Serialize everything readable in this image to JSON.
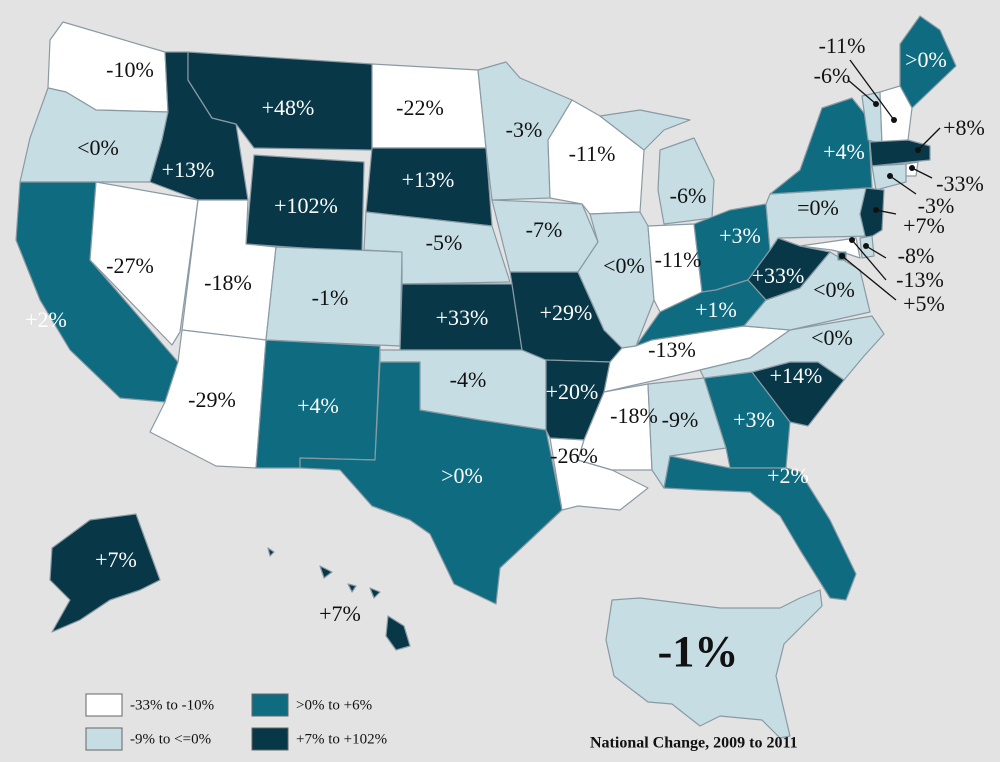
{
  "colors": {
    "cat1": "#ffffff",
    "cat2": "#c5dde3",
    "cat3": "#0e6b80",
    "cat4": "#083747"
  },
  "legend": [
    {
      "key": "cat1",
      "label": "-33% to -10%"
    },
    {
      "key": "cat3",
      "label": ">0% to +6%"
    },
    {
      "key": "cat2",
      "label": "-9% to <=0%"
    },
    {
      "key": "cat4",
      "label": "+7% to +102%"
    }
  ],
  "footer": "National Change, 2009 to 2011",
  "national": {
    "label": "-1%",
    "category": "cat2"
  },
  "states": [
    {
      "code": "WA",
      "label": "-10%",
      "category": "cat1"
    },
    {
      "code": "OR",
      "label": "<0%",
      "category": "cat2"
    },
    {
      "code": "CA",
      "label": "+2%",
      "category": "cat3"
    },
    {
      "code": "NV",
      "label": "-27%",
      "category": "cat1"
    },
    {
      "code": "ID",
      "label": "+13%",
      "category": "cat4"
    },
    {
      "code": "MT",
      "label": "+48%",
      "category": "cat4"
    },
    {
      "code": "WY",
      "label": "+102%",
      "category": "cat4"
    },
    {
      "code": "UT",
      "label": "-18%",
      "category": "cat1"
    },
    {
      "code": "AZ",
      "label": "-29%",
      "category": "cat1"
    },
    {
      "code": "CO",
      "label": "-1%",
      "category": "cat2"
    },
    {
      "code": "NM",
      "label": "+4%",
      "category": "cat3"
    },
    {
      "code": "ND",
      "label": "-22%",
      "category": "cat1"
    },
    {
      "code": "SD",
      "label": "+13%",
      "category": "cat4"
    },
    {
      "code": "NE",
      "label": "-5%",
      "category": "cat2"
    },
    {
      "code": "KS",
      "label": "+33%",
      "category": "cat4"
    },
    {
      "code": "OK",
      "label": "-4%",
      "category": "cat2"
    },
    {
      "code": "TX",
      "label": ">0%",
      "category": "cat3"
    },
    {
      "code": "MN",
      "label": "-3%",
      "category": "cat2"
    },
    {
      "code": "IA",
      "label": "-7%",
      "category": "cat2"
    },
    {
      "code": "MO",
      "label": "+29%",
      "category": "cat4"
    },
    {
      "code": "AR",
      "label": "+20%",
      "category": "cat4"
    },
    {
      "code": "LA",
      "label": "-26%",
      "category": "cat1"
    },
    {
      "code": "WI",
      "label": "-11%",
      "category": "cat1"
    },
    {
      "code": "IL",
      "label": "<0%",
      "category": "cat2"
    },
    {
      "code": "MI",
      "label": "-6%",
      "category": "cat2"
    },
    {
      "code": "IN",
      "label": "-11%",
      "category": "cat1"
    },
    {
      "code": "OH",
      "label": "+3%",
      "category": "cat3"
    },
    {
      "code": "KY",
      "label": "+1%",
      "category": "cat3"
    },
    {
      "code": "TN",
      "label": "-13%",
      "category": "cat1"
    },
    {
      "code": "MS",
      "label": "-18%",
      "category": "cat1"
    },
    {
      "code": "AL",
      "label": "-9%",
      "category": "cat2"
    },
    {
      "code": "GA",
      "label": "+3%",
      "category": "cat3"
    },
    {
      "code": "FL",
      "label": "+2%",
      "category": "cat3"
    },
    {
      "code": "SC",
      "label": "+14%",
      "category": "cat4"
    },
    {
      "code": "NC",
      "label": "<0%",
      "category": "cat2"
    },
    {
      "code": "VA",
      "label": "<0%",
      "category": "cat2"
    },
    {
      "code": "WV",
      "label": "+33%",
      "category": "cat4"
    },
    {
      "code": "PA",
      "label": "=0%",
      "category": "cat2"
    },
    {
      "code": "NY",
      "label": "+4%",
      "category": "cat3"
    },
    {
      "code": "ME",
      "label": ">0%",
      "category": "cat3"
    },
    {
      "code": "VT",
      "label": "-6%",
      "category": "cat2"
    },
    {
      "code": "NH",
      "label": "-11%",
      "category": "cat1"
    },
    {
      "code": "MA",
      "label": "+8%",
      "category": "cat4"
    },
    {
      "code": "RI",
      "label": "-33%",
      "category": "cat1"
    },
    {
      "code": "CT",
      "label": "-3%",
      "category": "cat2"
    },
    {
      "code": "NJ",
      "label": "+7%",
      "category": "cat4"
    },
    {
      "code": "DE",
      "label": "-8%",
      "category": "cat2"
    },
    {
      "code": "MD",
      "label": "-13%",
      "category": "cat1"
    },
    {
      "code": "DC",
      "label": "+5%",
      "category": "cat3"
    },
    {
      "code": "AK",
      "label": "+7%",
      "category": "cat4"
    },
    {
      "code": "HI",
      "label": "+7%",
      "category": "cat4"
    }
  ]
}
